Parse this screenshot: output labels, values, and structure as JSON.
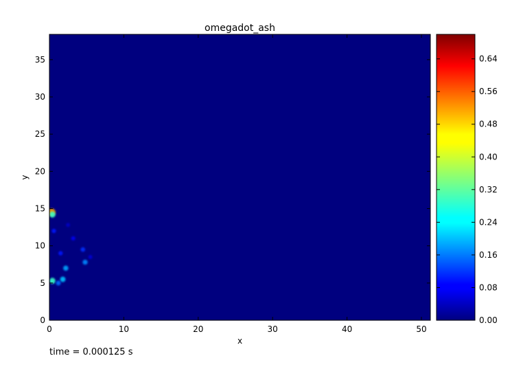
{
  "chart_data": {
    "type": "heatmap",
    "title": "omegadot_ash",
    "xlabel": "x",
    "ylabel": "y",
    "xlim": [
      0,
      51.2
    ],
    "ylim": [
      0,
      38.4
    ],
    "x_ticks": [
      0,
      10,
      20,
      30,
      40,
      50
    ],
    "y_ticks": [
      0,
      5,
      10,
      15,
      20,
      25,
      30,
      35
    ],
    "colormap": "jet",
    "colorbar": {
      "range": [
        0.0,
        0.7
      ],
      "ticks": [
        0.0,
        0.08,
        0.16,
        0.24,
        0.32,
        0.4,
        0.48,
        0.56,
        0.64
      ],
      "tick_labels": [
        "0.00",
        "0.08",
        "0.16",
        "0.24",
        "0.32",
        "0.40",
        "0.48",
        "0.56",
        "0.64"
      ]
    },
    "background_value": 0.0,
    "features": [
      {
        "x": 0.3,
        "y": 14.5,
        "value": 0.5
      },
      {
        "x": 0.4,
        "y": 14.2,
        "value": 0.3
      },
      {
        "x": 0.4,
        "y": 5.3,
        "value": 0.3
      },
      {
        "x": 1.8,
        "y": 5.5,
        "value": 0.22
      },
      {
        "x": 1.2,
        "y": 5.0,
        "value": 0.16
      },
      {
        "x": 2.2,
        "y": 7.0,
        "value": 0.2
      },
      {
        "x": 4.8,
        "y": 7.8,
        "value": 0.18
      },
      {
        "x": 4.5,
        "y": 9.5,
        "value": 0.12
      },
      {
        "x": 3.2,
        "y": 11.0,
        "value": 0.08
      },
      {
        "x": 1.5,
        "y": 9.0,
        "value": 0.1
      },
      {
        "x": 0.6,
        "y": 12.0,
        "value": 0.1
      },
      {
        "x": 5.5,
        "y": 8.5,
        "value": 0.06
      },
      {
        "x": 2.5,
        "y": 12.8,
        "value": 0.05
      }
    ],
    "grid": false
  },
  "annotation": {
    "time_text": "time = 0.000125 s"
  }
}
